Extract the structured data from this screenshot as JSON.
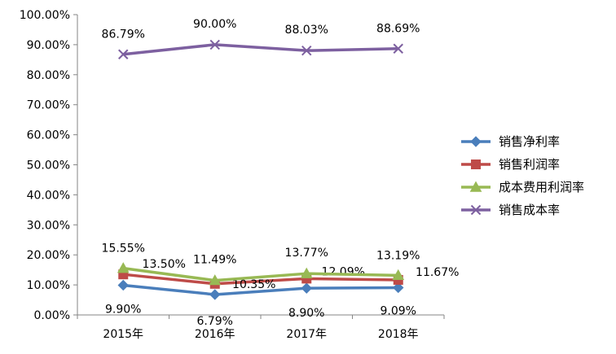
{
  "chart_data": {
    "type": "line",
    "categories": [
      "2015年",
      "2016年",
      "2017年",
      "2018年"
    ],
    "ylim": [
      0,
      100
    ],
    "y_ticks": [
      "0.00%",
      "10.00%",
      "20.00%",
      "30.00%",
      "40.00%",
      "50.00%",
      "60.00%",
      "70.00%",
      "80.00%",
      "90.00%",
      "100.00%"
    ],
    "grid": false,
    "legend_position": "right",
    "series": [
      {
        "name": "销售净利率",
        "values": [
          9.9,
          6.79,
          8.9,
          9.09
        ],
        "labels": [
          "9.90%",
          "6.79%",
          "8.90%",
          "9.09%"
        ],
        "color": "#4A7EBB",
        "marker": "diamond"
      },
      {
        "name": "销售利润率",
        "values": [
          13.5,
          10.35,
          12.09,
          11.67
        ],
        "labels": [
          "13.50%",
          "10.35%",
          "12.09%",
          "11.67%"
        ],
        "color": "#BE4B48",
        "marker": "square"
      },
      {
        "name": "成本费用利润率",
        "values": [
          15.55,
          11.49,
          13.77,
          13.19
        ],
        "labels": [
          "15.55%",
          "11.49%",
          "13.77%",
          "13.19%"
        ],
        "color": "#98B954",
        "marker": "triangle"
      },
      {
        "name": "销售成本率",
        "values": [
          86.79,
          90.0,
          88.03,
          88.69
        ],
        "labels": [
          "86.79%",
          "90.00%",
          "88.03%",
          "88.69%"
        ],
        "color": "#7D60A0",
        "marker": "x"
      }
    ]
  }
}
